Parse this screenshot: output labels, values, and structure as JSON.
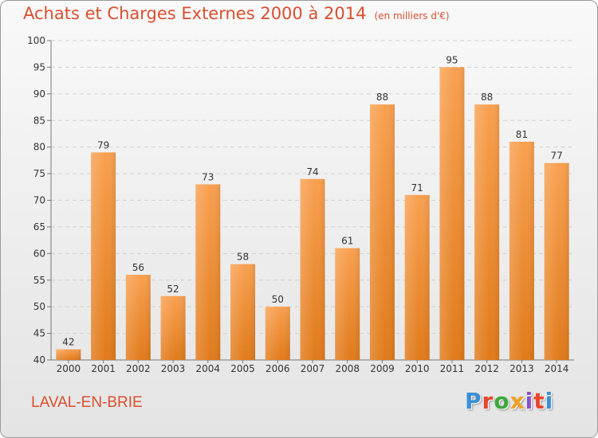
{
  "title": "Achats et Charges Externes 2000 à 2014",
  "unit_label": "(en milliers d'€)",
  "city": "LAVAL-EN-BRIE",
  "brand": "Proxiti",
  "brand_colors": [
    "#3a8fd6",
    "#e8442c",
    "#3aa83a",
    "#f0a020",
    "#8a4fc8",
    "#e8442c",
    "#3a8fd6"
  ],
  "colors": {
    "title": "#d94f30",
    "bar_top": "#f8a050",
    "bar_bottom": "#e07a1a"
  },
  "chart_data": {
    "type": "bar",
    "categories": [
      "2000",
      "2001",
      "2002",
      "2003",
      "2004",
      "2005",
      "2006",
      "2007",
      "2008",
      "2009",
      "2010",
      "2011",
      "2012",
      "2013",
      "2014"
    ],
    "values": [
      42,
      79,
      56,
      52,
      73,
      58,
      50,
      74,
      61,
      88,
      71,
      95,
      88,
      81,
      77
    ],
    "ylim": [
      40,
      100
    ],
    "yticks": [
      40,
      45,
      50,
      55,
      60,
      65,
      70,
      75,
      80,
      85,
      90,
      95,
      100
    ],
    "grid": true
  }
}
